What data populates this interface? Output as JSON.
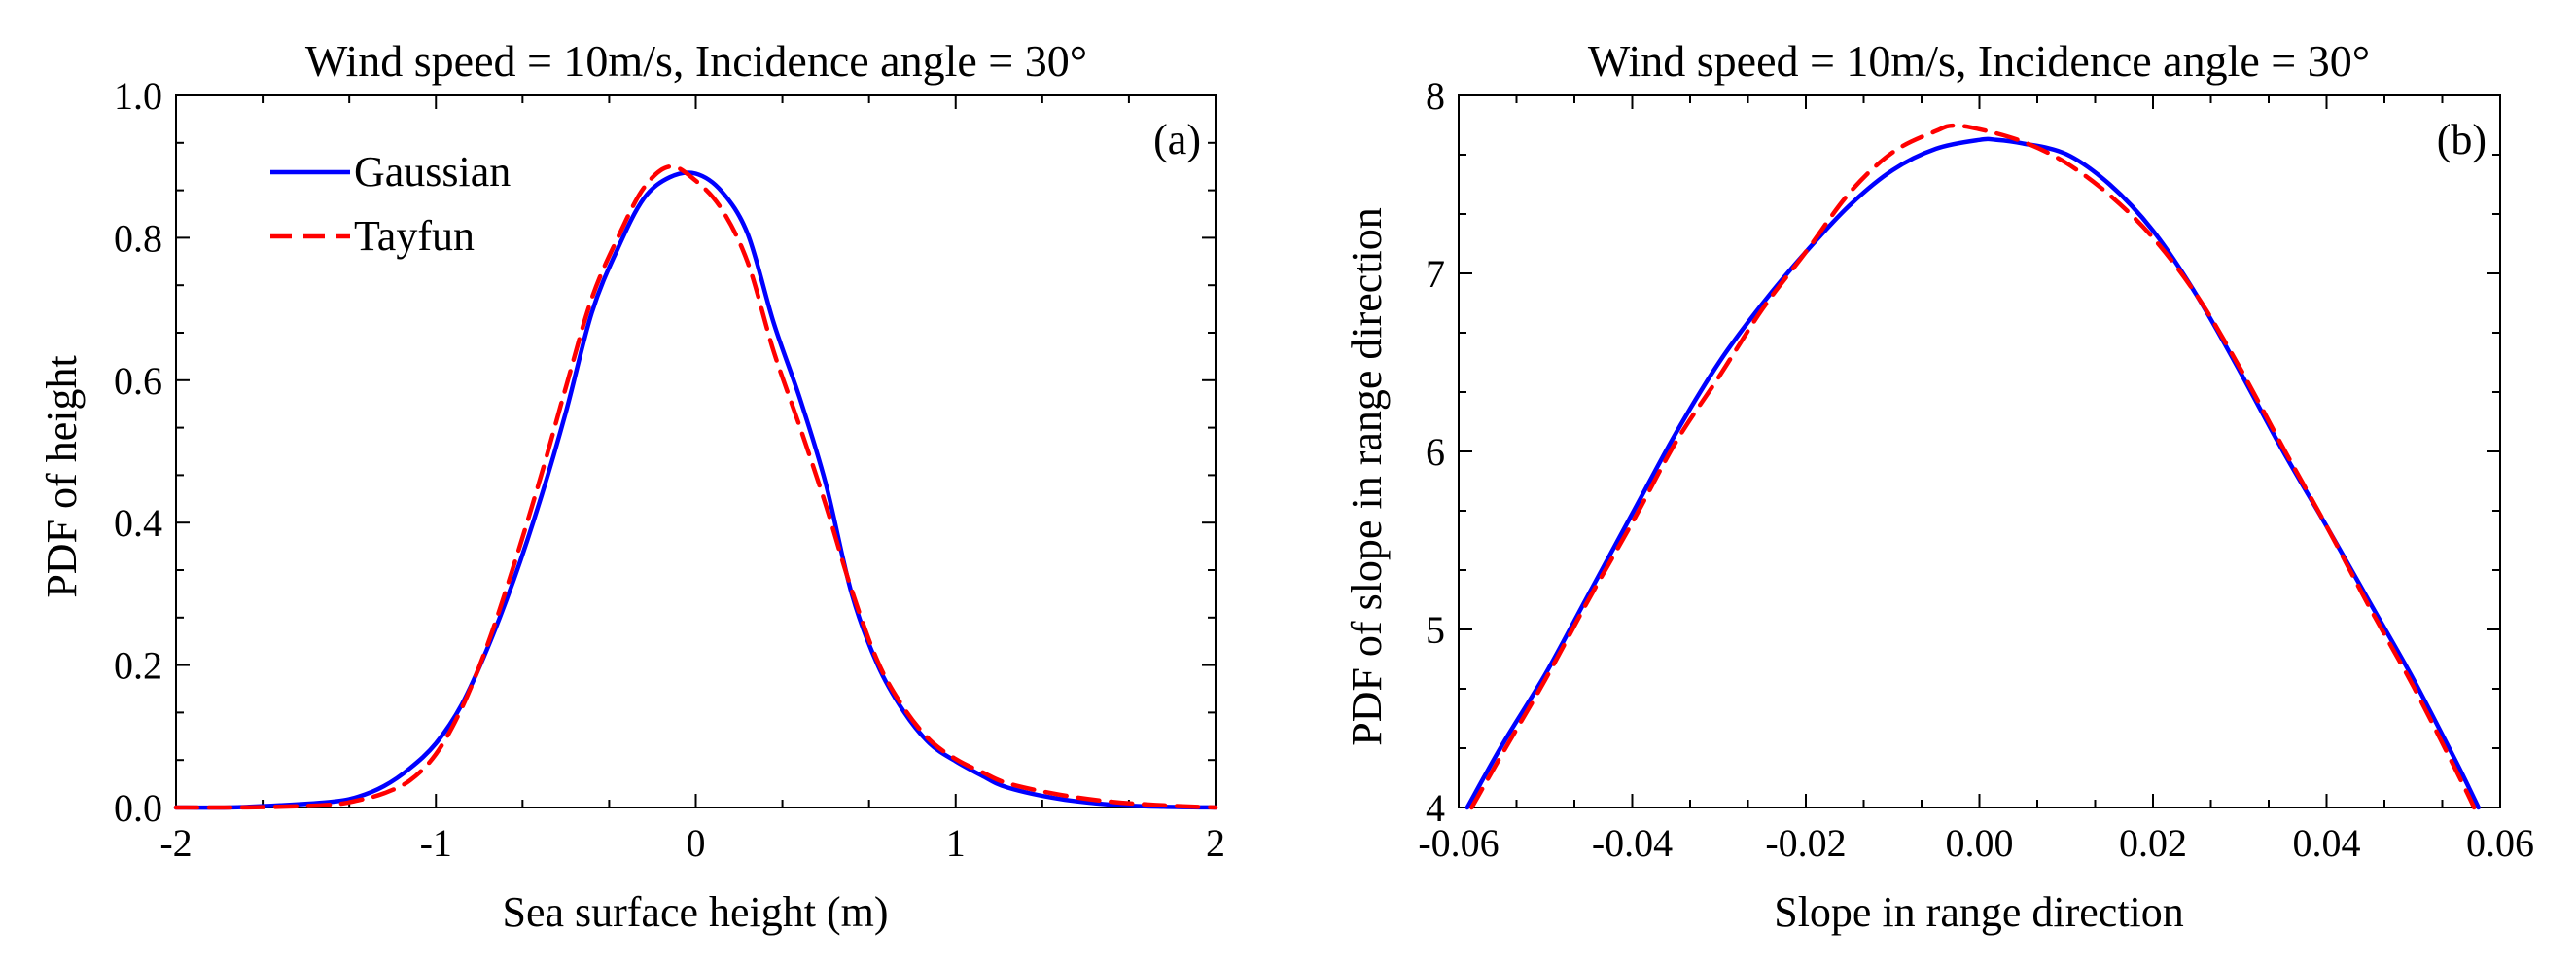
{
  "chart_data": [
    {
      "type": "line",
      "panel_label": "(a)",
      "title": "Wind speed = 10m/s, Incidence angle = 30°",
      "xlabel": "Sea surface height (m)",
      "ylabel": "PDF of height",
      "xlim": [
        -2,
        2
      ],
      "ylim": [
        0,
        1
      ],
      "xticks": [
        -2,
        -1,
        0,
        1,
        2
      ],
      "xtick_labels": [
        "-2",
        "-1",
        "0",
        "1",
        "2"
      ],
      "yticks": [
        0,
        0.2,
        0.4,
        0.6,
        0.8,
        1.0
      ],
      "ytick_labels": [
        "0.0",
        "0.2",
        "0.4",
        "0.6",
        "0.8",
        "1.0"
      ],
      "grid": false,
      "legend": "top-left",
      "series": [
        {
          "name": "Gaussian",
          "color": "#0000ff",
          "style": "solid",
          "x": [
            -2.0,
            -1.8,
            -1.6,
            -1.4,
            -1.3,
            -1.2,
            -1.1,
            -1.0,
            -0.9,
            -0.8,
            -0.7,
            -0.6,
            -0.5,
            -0.4,
            -0.3,
            -0.2,
            -0.1,
            0.0,
            0.1,
            0.2,
            0.3,
            0.4,
            0.5,
            0.6,
            0.7,
            0.8,
            0.9,
            1.0,
            1.1,
            1.2,
            1.4,
            1.6,
            1.8,
            2.0
          ],
          "y": [
            0.0,
            0.0,
            0.003,
            0.008,
            0.015,
            0.03,
            0.055,
            0.09,
            0.145,
            0.225,
            0.32,
            0.43,
            0.555,
            0.695,
            0.785,
            0.855,
            0.885,
            0.89,
            0.865,
            0.805,
            0.68,
            0.575,
            0.455,
            0.3,
            0.2,
            0.135,
            0.09,
            0.065,
            0.045,
            0.028,
            0.012,
            0.004,
            0.001,
            0.0
          ]
        },
        {
          "name": "Tayfun",
          "color": "#ff0000",
          "style": "dashed",
          "x": [
            -2.0,
            -1.8,
            -1.6,
            -1.4,
            -1.3,
            -1.2,
            -1.1,
            -1.0,
            -0.9,
            -0.8,
            -0.7,
            -0.6,
            -0.5,
            -0.4,
            -0.3,
            -0.2,
            -0.1,
            0.0,
            0.1,
            0.2,
            0.3,
            0.4,
            0.5,
            0.6,
            0.7,
            0.8,
            0.9,
            1.0,
            1.1,
            1.2,
            1.4,
            1.6,
            1.8,
            2.0
          ],
          "y": [
            0.0,
            0.0,
            0.001,
            0.004,
            0.01,
            0.02,
            0.038,
            0.075,
            0.14,
            0.23,
            0.34,
            0.46,
            0.59,
            0.715,
            0.8,
            0.87,
            0.9,
            0.88,
            0.84,
            0.765,
            0.64,
            0.535,
            0.425,
            0.305,
            0.205,
            0.14,
            0.095,
            0.068,
            0.05,
            0.034,
            0.018,
            0.008,
            0.003,
            0.0
          ]
        }
      ]
    },
    {
      "type": "line",
      "panel_label": "(b)",
      "title": "Wind speed = 10m/s, Incidence angle = 30°",
      "xlabel": "Slope in range direction",
      "ylabel": "PDF of slope in range direction",
      "xlim": [
        -0.06,
        0.06
      ],
      "ylim": [
        4,
        8
      ],
      "xticks": [
        -0.06,
        -0.04,
        -0.02,
        0.0,
        0.02,
        0.04,
        0.06
      ],
      "xtick_labels": [
        "-0.06",
        "-0.04",
        "-0.02",
        "0.00",
        "0.02",
        "0.04",
        "0.06"
      ],
      "yticks": [
        4,
        5,
        6,
        7,
        8
      ],
      "ytick_labels": [
        "4",
        "5",
        "6",
        "7",
        "8"
      ],
      "grid": false,
      "legend": "none",
      "series": [
        {
          "name": "Gaussian",
          "color": "#0000ff",
          "style": "solid",
          "x": [
            -0.059,
            -0.055,
            -0.05,
            -0.045,
            -0.04,
            -0.035,
            -0.03,
            -0.025,
            -0.02,
            -0.015,
            -0.01,
            -0.005,
            0.0,
            0.002,
            0.005,
            0.01,
            0.015,
            0.02,
            0.025,
            0.03,
            0.035,
            0.04,
            0.045,
            0.05,
            0.055,
            0.0575
          ],
          "y": [
            4.0,
            4.35,
            4.75,
            5.2,
            5.65,
            6.1,
            6.5,
            6.83,
            7.12,
            7.38,
            7.58,
            7.7,
            7.75,
            7.75,
            7.73,
            7.67,
            7.5,
            7.24,
            6.88,
            6.45,
            6.0,
            5.58,
            5.15,
            4.72,
            4.25,
            4.0
          ]
        },
        {
          "name": "Tayfun",
          "color": "#ff0000",
          "style": "dashed",
          "x": [
            -0.0585,
            -0.055,
            -0.05,
            -0.045,
            -0.04,
            -0.035,
            -0.03,
            -0.025,
            -0.02,
            -0.015,
            -0.01,
            -0.005,
            -0.003,
            0.0,
            0.005,
            0.01,
            0.015,
            0.02,
            0.025,
            0.03,
            0.035,
            0.04,
            0.045,
            0.05,
            0.055,
            0.057
          ],
          "y": [
            4.0,
            4.3,
            4.72,
            5.17,
            5.6,
            6.05,
            6.42,
            6.8,
            7.12,
            7.45,
            7.68,
            7.8,
            7.83,
            7.81,
            7.74,
            7.62,
            7.44,
            7.2,
            6.88,
            6.47,
            6.02,
            5.58,
            5.12,
            4.68,
            4.2,
            4.0
          ]
        }
      ]
    }
  ]
}
